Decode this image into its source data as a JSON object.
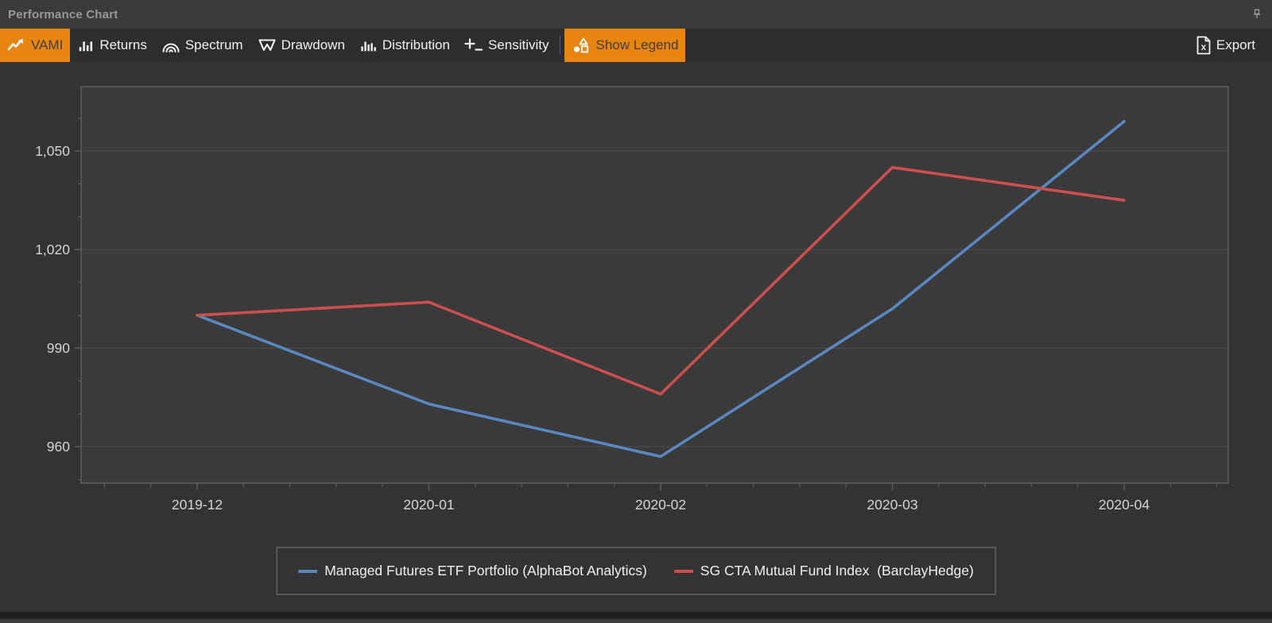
{
  "window": {
    "title": "Performance Chart"
  },
  "toolbar": {
    "tabs": [
      {
        "label": "VAMI"
      },
      {
        "label": "Returns"
      },
      {
        "label": "Spectrum"
      },
      {
        "label": "Drawdown"
      },
      {
        "label": "Distribution"
      },
      {
        "label": "Sensitivity"
      }
    ],
    "show_legend_label": "Show Legend",
    "export_label": "Export"
  },
  "colors": {
    "accent_orange": "#e88410",
    "active_tab_text": "#3f3f3f",
    "panel_bg": "#333333",
    "titlebar_bg": "#3b3b3b",
    "toolbar_bg": "#2d2d2d",
    "plot_bg": "#3a3a3a",
    "gridline": "#474747",
    "axis_border": "#5c5c5c",
    "tick_label": "#d4d4d4",
    "series_blue": "#5b87c0",
    "series_red": "#cc4e4e"
  },
  "chart_data": {
    "type": "line",
    "title": "",
    "xlabel": "",
    "ylabel": "",
    "x": [
      "2019-12",
      "2020-01",
      "2020-02",
      "2020-03",
      "2020-04"
    ],
    "series": [
      {
        "name": "Managed Futures ETF Portfolio (AlphaBot Analytics)",
        "color": "#5b87c0",
        "values": [
          1000,
          973,
          957,
          1002,
          1059
        ]
      },
      {
        "name": "SG CTA Mutual Fund Index  (BarclayHedge)",
        "color": "#cc4e4e",
        "values": [
          1000,
          1004,
          976,
          1045,
          1035
        ]
      }
    ],
    "yticks": [
      960,
      990,
      1020,
      1050
    ],
    "y_minor_step": 10,
    "x_minor_divisions": 5,
    "ylim": [
      948.9,
      1069.6
    ],
    "grid": "horizontal",
    "legend_position": "bottom"
  }
}
